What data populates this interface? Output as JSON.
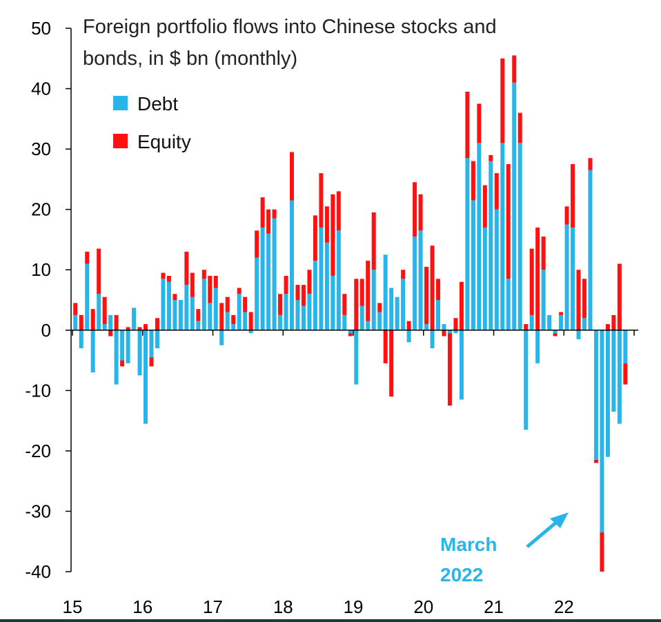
{
  "colors": {
    "debt": "#29b5ea",
    "equity": "#ff1111",
    "annotation": "#29b5ea",
    "axis": "#000000"
  },
  "chart_data": {
    "type": "bar",
    "stacked": true,
    "title_lines": [
      "Foreign portfolio flows into Chinese stocks and",
      "bonds, in $ bn (monthly)"
    ],
    "xlabel": "",
    "ylabel": "",
    "ylim": [
      -40,
      50
    ],
    "y_ticks": [
      "50",
      "40",
      "30",
      "20",
      "10",
      "0",
      "-10",
      "-20",
      "-30",
      "-40"
    ],
    "y_tick_values": [
      50,
      40,
      30,
      20,
      10,
      0,
      -10,
      -20,
      -30,
      -40
    ],
    "x_ticks": [
      "15",
      "16",
      "17",
      "18",
      "19",
      "20",
      "21",
      "22"
    ],
    "x_start_month": "2015-01",
    "legend": [
      {
        "name": "Debt",
        "color": "#29b5ea"
      },
      {
        "name": "Equity",
        "color": "#ff1111"
      }
    ],
    "legend_position": "top-left",
    "grid": false,
    "series": [
      {
        "name": "Debt",
        "values": [
          2.5,
          -3,
          11,
          -7,
          6,
          1,
          2.5,
          -9,
          -5,
          -5.5,
          3.7,
          -7.5,
          -15.5,
          -4.5,
          -3,
          8.5,
          8,
          5,
          5,
          7.5,
          5.5,
          1.5,
          8.5,
          4.5,
          7,
          -2.5,
          3,
          1,
          6,
          3,
          -0.5,
          12,
          17,
          16,
          18.5,
          2.5,
          6,
          21.5,
          5,
          4,
          6,
          11.5,
          17,
          14.5,
          9,
          16.5,
          2.5,
          -0.5,
          -9,
          4,
          1.5,
          10,
          3,
          12.5,
          7,
          5.5,
          8.5,
          -2,
          15.5,
          16.5,
          1,
          -3,
          5,
          1,
          -0.5,
          -0.5,
          -11.5,
          28.5,
          21.5,
          31,
          17,
          28,
          20,
          31,
          8.5,
          41,
          31,
          -16.5,
          2.5,
          -5.5,
          10,
          2.5,
          -0.5,
          2.5,
          17.5,
          17,
          -1.5,
          2,
          26.5,
          -21.5,
          -33.5,
          -21,
          -13.5,
          -15.5,
          -5.5
        ]
      },
      {
        "name": "Equity",
        "values": [
          2,
          2.5,
          2,
          3.5,
          7.5,
          4.5,
          -1,
          2.5,
          -1,
          0.5,
          0,
          0.5,
          1,
          -1.5,
          2,
          1,
          1,
          1,
          0,
          5.5,
          4,
          2,
          1.5,
          4.5,
          2,
          4.5,
          2.5,
          1.5,
          1,
          2.5,
          3,
          4.5,
          5,
          4,
          1.5,
          3.5,
          3,
          8,
          2.5,
          3.5,
          4,
          7.5,
          9,
          6,
          13.5,
          6.5,
          3.5,
          -0.5,
          8.5,
          4.5,
          10,
          9.5,
          1.5,
          -5.5,
          -11,
          0,
          1.5,
          1.5,
          9,
          6,
          9.5,
          14,
          3.5,
          -1,
          -12,
          2,
          8,
          11,
          6.5,
          6.5,
          7,
          1,
          6,
          14,
          19,
          4.5,
          5,
          1,
          11,
          17,
          5.5,
          0,
          -0.5,
          0.5,
          3,
          10.5,
          10,
          6.5,
          2,
          -0.5,
          -6.5,
          1,
          2.5,
          11,
          -3.5
        ]
      }
    ],
    "annotations": [
      {
        "text_lines": [
          "March",
          "2022"
        ],
        "target_month": "2022-03"
      }
    ]
  }
}
